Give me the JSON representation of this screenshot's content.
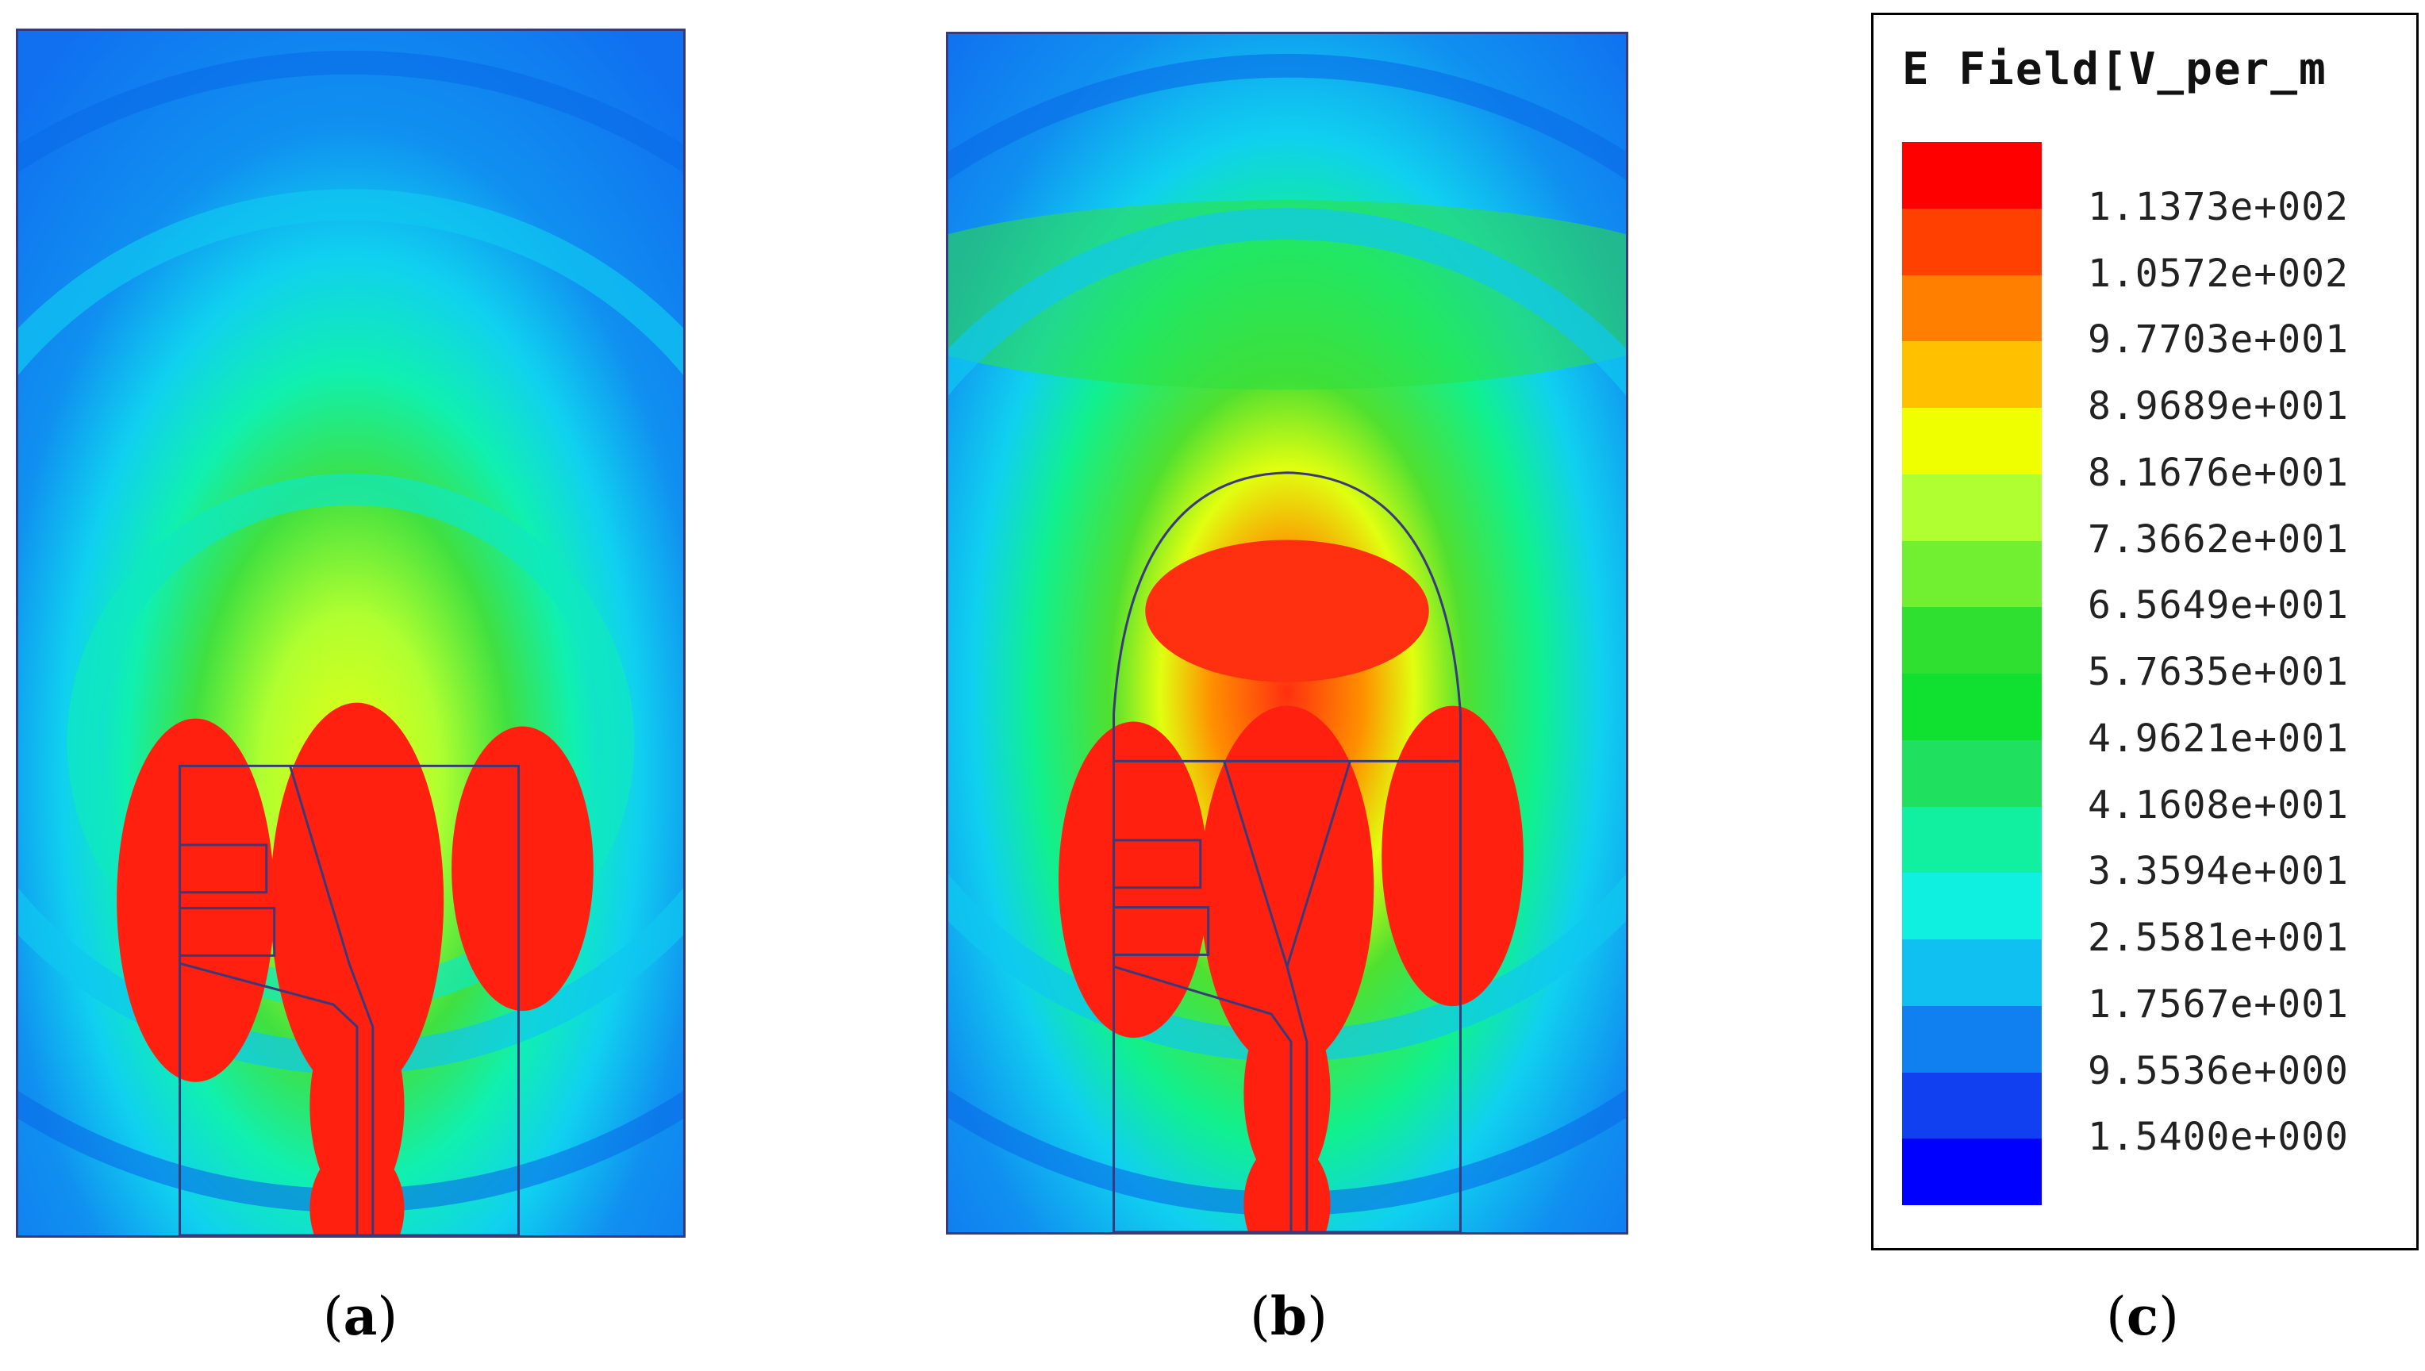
{
  "figure": {
    "captions": {
      "a": "a",
      "b": "b",
      "c": "c"
    }
  },
  "legend": {
    "title": "E Field[V_per_m",
    "ticks": [
      "1.1373e+002",
      "1.0572e+002",
      "9.7703e+001",
      "8.9689e+001",
      "8.1676e+001",
      "7.3662e+001",
      "6.5649e+001",
      "5.7635e+001",
      "4.9621e+001",
      "4.1608e+001",
      "3.3594e+001",
      "2.5581e+001",
      "1.7567e+001",
      "9.5536e+000",
      "1.5400e+000"
    ],
    "colors": [
      "#ff0000",
      "#ff4000",
      "#ff8000",
      "#ffc000",
      "#f0ff00",
      "#b0ff30",
      "#70f030",
      "#30e030",
      "#10e030",
      "#20e060",
      "#10f0a0",
      "#10f0e0",
      "#10c0f0",
      "#1080f0",
      "#1040f0",
      "#0000ff"
    ]
  },
  "colors": {
    "outline": "#3a3a78",
    "background_field": "#1890f0"
  }
}
